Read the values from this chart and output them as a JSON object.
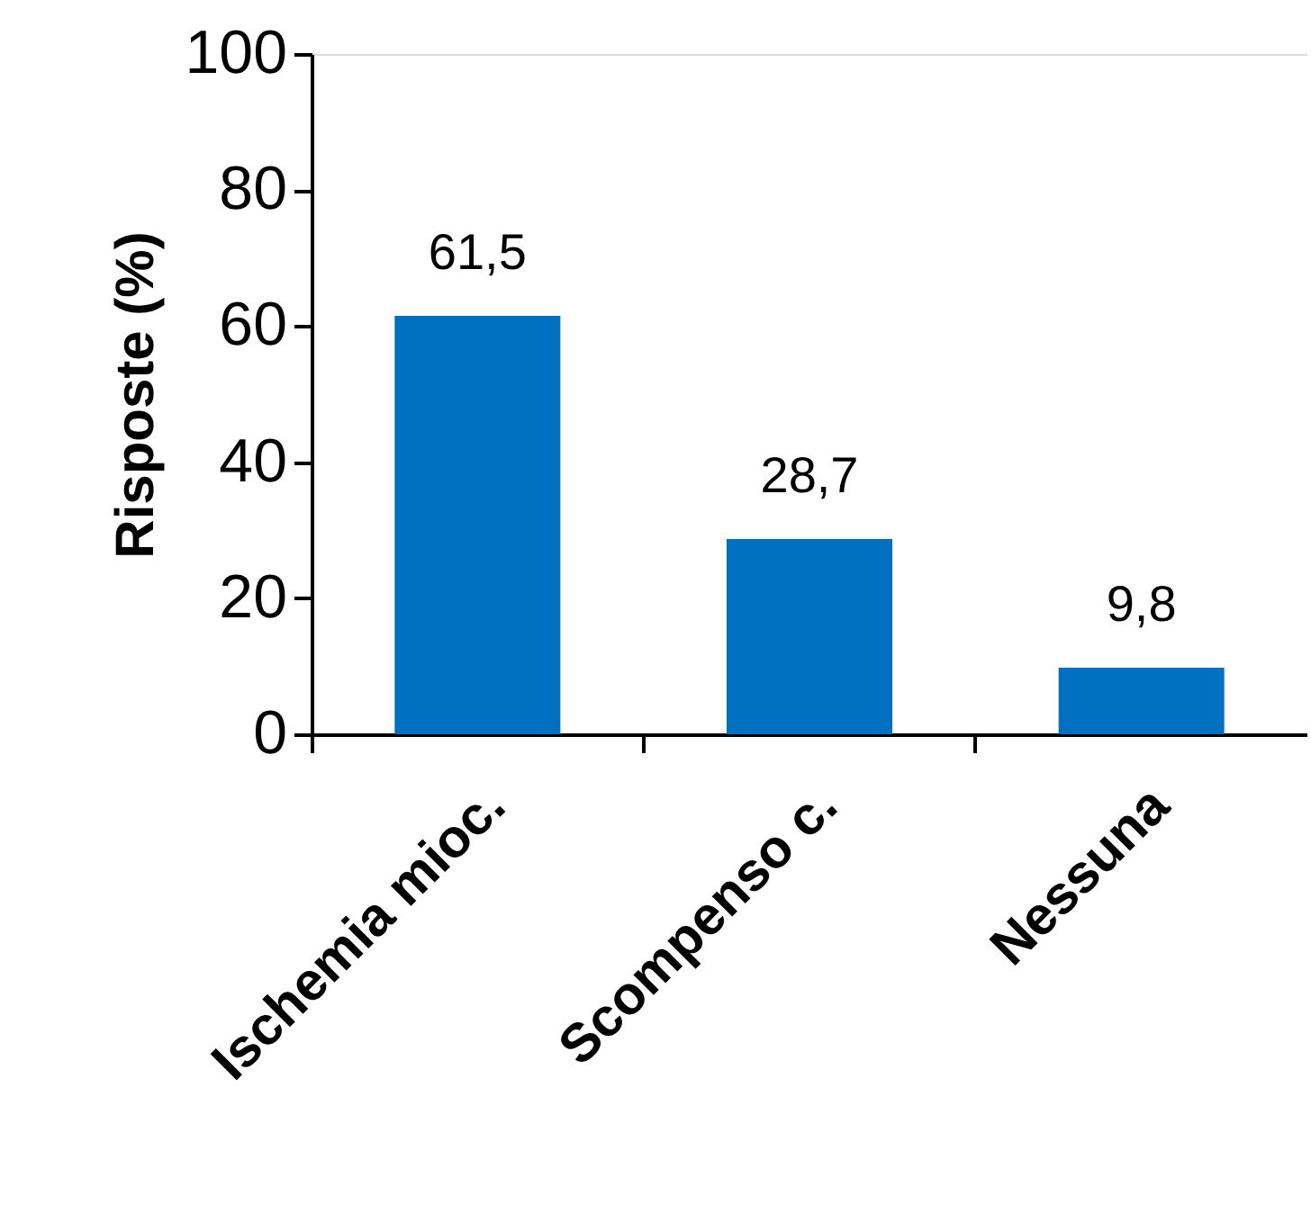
{
  "chart_data": {
    "type": "bar",
    "ylabel": "Risposte (%)",
    "categories": [
      "Ischemia mioc.",
      "Scompenso c.",
      "Nessuna"
    ],
    "values": [
      61.5,
      28.7,
      9.8
    ],
    "color": "#0070c0",
    "value_labels": [
      "61,5",
      "28,7",
      "9,8"
    ],
    "ylim": [
      0,
      100
    ],
    "yticks": [
      0,
      20,
      40,
      60,
      80,
      100
    ],
    "grid": false
  }
}
